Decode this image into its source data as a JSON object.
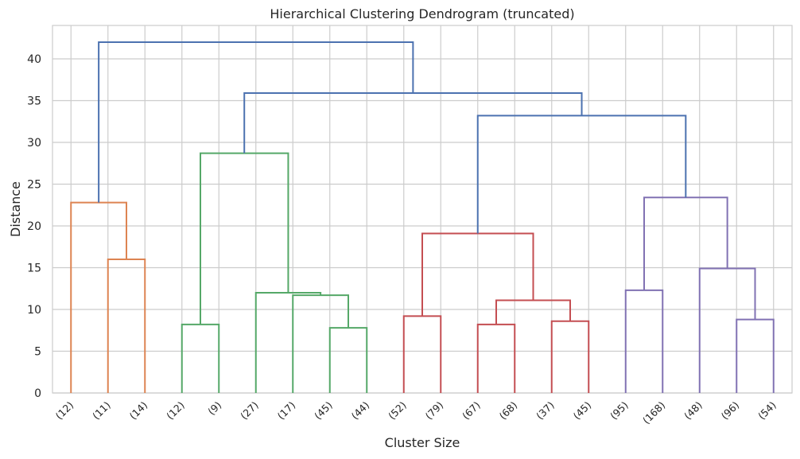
{
  "chart_data": {
    "type": "dendrogram",
    "title": "Hierarchical Clustering Dendrogram (truncated)",
    "xlabel": "Cluster Size",
    "ylabel": "Distance",
    "ylim": [
      0,
      44
    ],
    "yticks": [
      0,
      5,
      10,
      15,
      20,
      25,
      30,
      35,
      40
    ],
    "grid": true,
    "leaves": [
      "(12)",
      "(11)",
      "(14)",
      "(12)",
      "(9)",
      "(27)",
      "(17)",
      "(45)",
      "(44)",
      "(52)",
      "(79)",
      "(67)",
      "(68)",
      "(37)",
      "(45)",
      "(95)",
      "(168)",
      "(48)",
      "(96)",
      "(54)"
    ],
    "colors": {
      "C1": "#dd8452",
      "C2": "#55a868",
      "C3": "#c44e52",
      "C4": "#8172b3",
      "above_threshold": "#4c72b0"
    },
    "merges": [
      {
        "id": "a",
        "left": 1,
        "right": 2,
        "height": 16.0,
        "color": "C1"
      },
      {
        "id": "b",
        "left": 0,
        "right": "a",
        "height": 22.8,
        "color": "C1"
      },
      {
        "id": "c",
        "left": 3,
        "right": 4,
        "height": 8.2,
        "color": "C2"
      },
      {
        "id": "d",
        "left": 7,
        "right": 8,
        "height": 7.8,
        "color": "C2"
      },
      {
        "id": "e",
        "left": 6,
        "right": "d",
        "height": 11.7,
        "color": "C2"
      },
      {
        "id": "f",
        "left": 5,
        "right": "e",
        "height": 12.0,
        "color": "C2"
      },
      {
        "id": "g",
        "left": "c",
        "right": "f",
        "height": 28.7,
        "color": "C2"
      },
      {
        "id": "h",
        "left": 9,
        "right": 10,
        "height": 9.2,
        "color": "C3"
      },
      {
        "id": "i",
        "left": 11,
        "right": 12,
        "height": 8.2,
        "color": "C3"
      },
      {
        "id": "j",
        "left": 13,
        "right": 14,
        "height": 8.6,
        "color": "C3"
      },
      {
        "id": "k",
        "left": "i",
        "right": "j",
        "height": 11.1,
        "color": "C3"
      },
      {
        "id": "l",
        "left": "h",
        "right": "k",
        "height": 19.1,
        "color": "C3"
      },
      {
        "id": "m",
        "left": 15,
        "right": 16,
        "height": 12.3,
        "color": "C4"
      },
      {
        "id": "n",
        "left": 18,
        "right": 19,
        "height": 8.8,
        "color": "C4"
      },
      {
        "id": "o",
        "left": 17,
        "right": "n",
        "height": 14.9,
        "color": "C4"
      },
      {
        "id": "p",
        "left": "m",
        "right": "o",
        "height": 23.4,
        "color": "C4"
      },
      {
        "id": "q",
        "left": "l",
        "right": "p",
        "height": 33.2,
        "color": "above_threshold"
      },
      {
        "id": "r",
        "left": "g",
        "right": "q",
        "height": 35.9,
        "color": "above_threshold"
      },
      {
        "id": "s",
        "left": "b",
        "right": "r",
        "height": 42.0,
        "color": "above_threshold"
      }
    ]
  }
}
